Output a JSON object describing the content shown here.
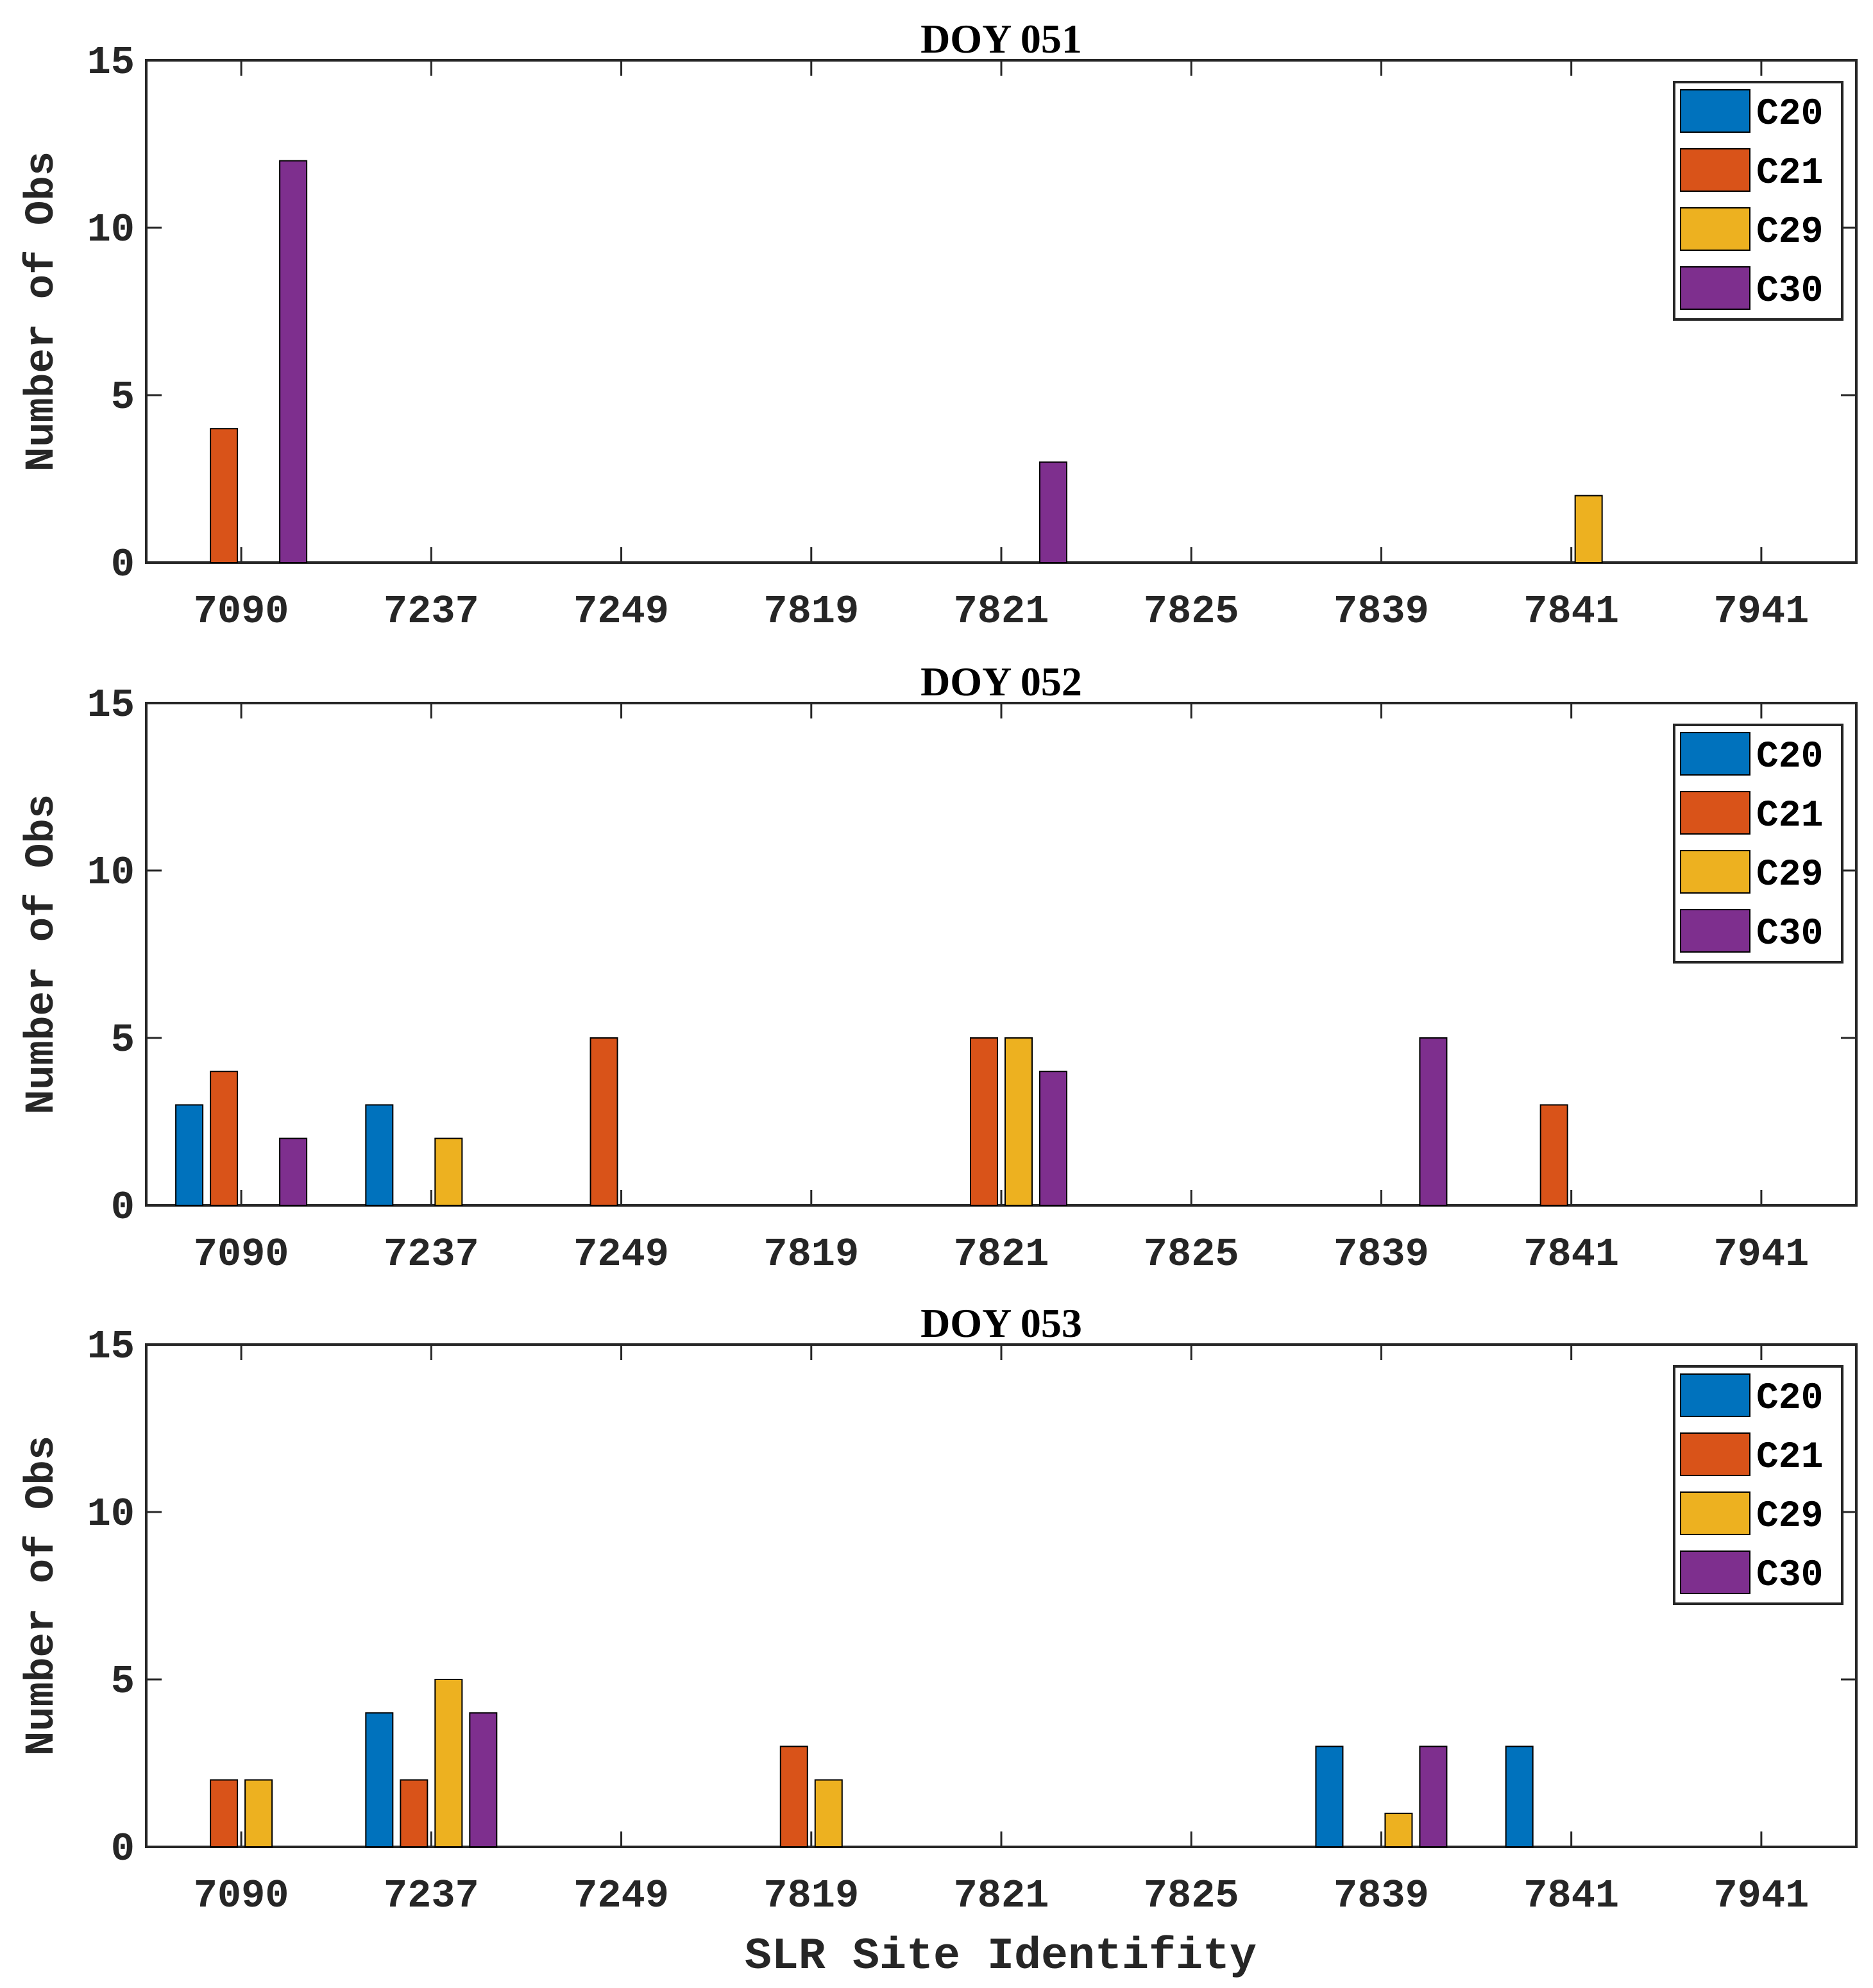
{
  "figure": {
    "xlabel": "SLR Site Identifity"
  },
  "colors": {
    "C20": "#0072BD",
    "C21": "#D95319",
    "C29": "#EDB120",
    "C30": "#7E2F8E"
  },
  "chart_data": [
    {
      "type": "bar",
      "title": "DOY 051",
      "ylabel": "Number of Obs",
      "xlabel": "",
      "ylim": [
        0,
        15
      ],
      "yticks": [
        "0",
        "5",
        "10",
        "15"
      ],
      "categories": [
        "7090",
        "7237",
        "7249",
        "7819",
        "7821",
        "7825",
        "7839",
        "7841",
        "7941"
      ],
      "legend_position": "top-right",
      "series": [
        {
          "name": "C20",
          "values": [
            0,
            0,
            0,
            0,
            0,
            0,
            0,
            0,
            0
          ]
        },
        {
          "name": "C21",
          "values": [
            4,
            0,
            0,
            0,
            0,
            0,
            0,
            0,
            0
          ]
        },
        {
          "name": "C29",
          "values": [
            0,
            0,
            0,
            0,
            0,
            0,
            0,
            2,
            0
          ]
        },
        {
          "name": "C30",
          "values": [
            12,
            0,
            0,
            0,
            3,
            0,
            0,
            0,
            0
          ]
        }
      ]
    },
    {
      "type": "bar",
      "title": "DOY 052",
      "ylabel": "Number of Obs",
      "xlabel": "",
      "ylim": [
        0,
        15
      ],
      "yticks": [
        "0",
        "5",
        "10",
        "15"
      ],
      "categories": [
        "7090",
        "7237",
        "7249",
        "7819",
        "7821",
        "7825",
        "7839",
        "7841",
        "7941"
      ],
      "legend_position": "top-right",
      "series": [
        {
          "name": "C20",
          "values": [
            3,
            3,
            0,
            0,
            0,
            0,
            0,
            0,
            0
          ]
        },
        {
          "name": "C21",
          "values": [
            4,
            0,
            5,
            0,
            5,
            0,
            0,
            3,
            0
          ]
        },
        {
          "name": "C29",
          "values": [
            0,
            2,
            0,
            0,
            5,
            0,
            0,
            0,
            0
          ]
        },
        {
          "name": "C30",
          "values": [
            2,
            0,
            0,
            0,
            4,
            0,
            5,
            0,
            0
          ]
        }
      ]
    },
    {
      "type": "bar",
      "title": "DOY 053",
      "ylabel": "Number of Obs",
      "xlabel": "SLR Site Identifity",
      "ylim": [
        0,
        15
      ],
      "yticks": [
        "0",
        "5",
        "10",
        "15"
      ],
      "categories": [
        "7090",
        "7237",
        "7249",
        "7819",
        "7821",
        "7825",
        "7839",
        "7841",
        "7941"
      ],
      "legend_position": "top-right",
      "series": [
        {
          "name": "C20",
          "values": [
            0,
            4,
            0,
            0,
            0,
            0,
            3,
            3,
            0
          ]
        },
        {
          "name": "C21",
          "values": [
            2,
            2,
            0,
            3,
            0,
            0,
            0,
            0,
            0
          ]
        },
        {
          "name": "C29",
          "values": [
            2,
            5,
            0,
            2,
            0,
            0,
            1,
            0,
            0
          ]
        },
        {
          "name": "C30",
          "values": [
            0,
            4,
            0,
            0,
            0,
            0,
            3,
            0,
            0
          ]
        }
      ]
    }
  ]
}
